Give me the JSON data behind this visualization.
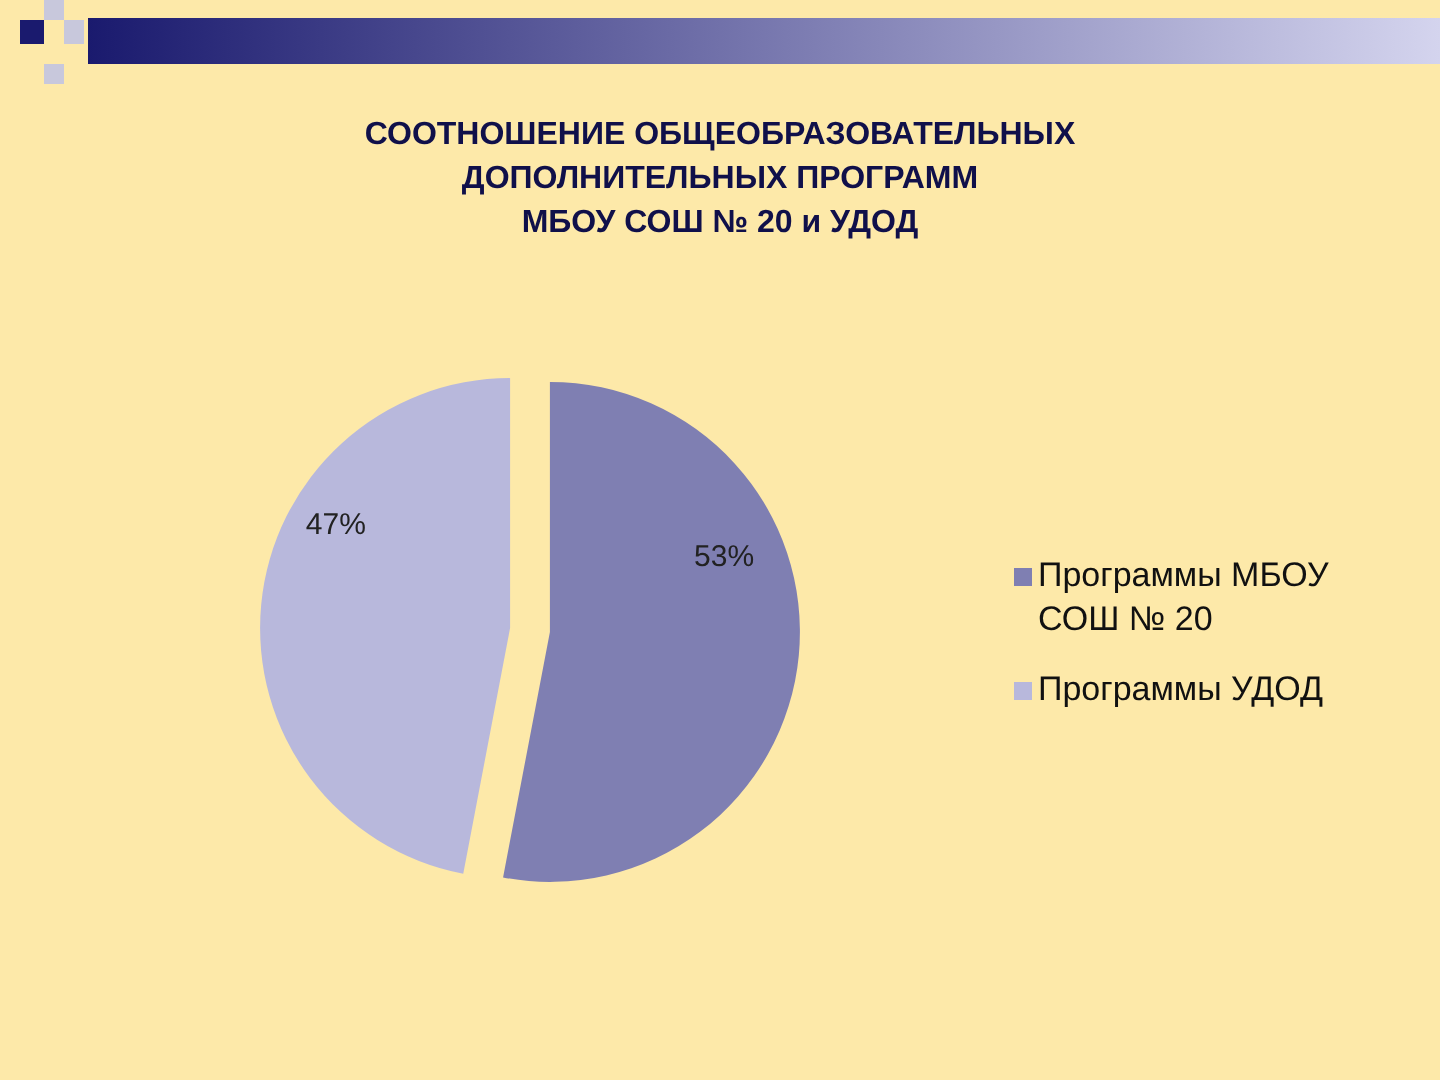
{
  "chart_data": {
    "type": "pie",
    "title": "СООТНОШЕНИЕ ОБЩЕОБРАЗОВАТЕЛЬНЫХ\nДОПОЛНИТЕЛЬНЫХ ПРОГРАММ\nМБОУ СОШ № 20 и УДОД",
    "categories": [
      "Программы МБОУ СОШ № 20",
      "Программы УДОД"
    ],
    "values": [
      53,
      47
    ],
    "colors": [
      "#7f7fb2",
      "#b8b8dc"
    ],
    "value_labels": [
      "53%",
      "47%"
    ],
    "legend": "right"
  }
}
